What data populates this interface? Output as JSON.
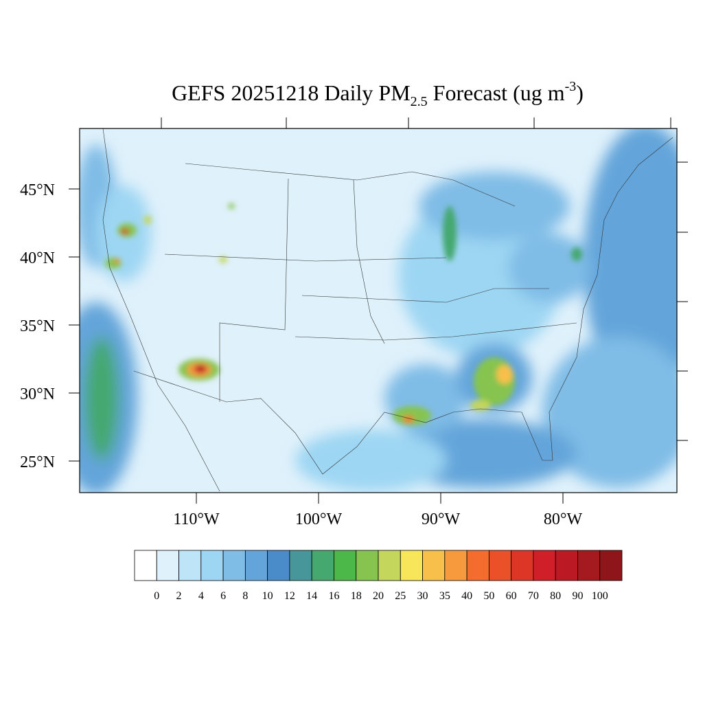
{
  "map": {
    "title": {
      "main": "GEFS 20251218 Daily PM",
      "sub": "2.5",
      "middle": " Forecast (ug m",
      "sup": "-3",
      "end": ")"
    },
    "lat_labels": [
      {
        "value": 45,
        "label": "45°N"
      },
      {
        "value": 40,
        "label": "40°N"
      },
      {
        "value": 35,
        "label": "35°N"
      },
      {
        "value": 30,
        "label": "30°N"
      },
      {
        "value": 25,
        "label": "25°N"
      }
    ],
    "lon_labels": [
      {
        "value": -110,
        "label": "110°W"
      },
      {
        "value": -100,
        "label": "100°W"
      },
      {
        "value": -90,
        "label": "90°W"
      },
      {
        "value": -80,
        "label": "80°W"
      }
    ],
    "colorbar": {
      "levels": [
        0,
        2,
        4,
        6,
        8,
        10,
        12,
        14,
        16,
        18,
        20,
        25,
        30,
        35,
        40,
        50,
        60,
        70,
        80,
        90,
        100
      ],
      "colors": [
        "#ffffff",
        "#dff1fb",
        "#bde5f7",
        "#9dd6f3",
        "#7fbce6",
        "#63a5da",
        "#4a8cc9",
        "#47979a",
        "#45a86f",
        "#4cb84a",
        "#86c44f",
        "#c4d65c",
        "#f7e65a",
        "#f8c04b",
        "#f7993d",
        "#f46d2e",
        "#eb5129",
        "#dd3627",
        "#d11f2a",
        "#bb1a25",
        "#a41a1f",
        "#8e1519"
      ]
    }
  }
}
